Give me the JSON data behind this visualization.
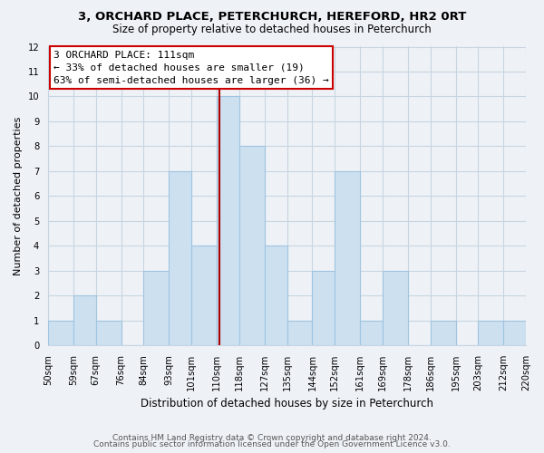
{
  "title_line1": "3, ORCHARD PLACE, PETERCHURCH, HEREFORD, HR2 0RT",
  "title_line2": "Size of property relative to detached houses in Peterchurch",
  "xlabel": "Distribution of detached houses by size in Peterchurch",
  "ylabel": "Number of detached properties",
  "bin_labels": [
    "50sqm",
    "59sqm",
    "67sqm",
    "76sqm",
    "84sqm",
    "93sqm",
    "101sqm",
    "110sqm",
    "118sqm",
    "127sqm",
    "135sqm",
    "144sqm",
    "152sqm",
    "161sqm",
    "169sqm",
    "178sqm",
    "186sqm",
    "195sqm",
    "203sqm",
    "212sqm",
    "220sqm"
  ],
  "bin_edges": [
    50,
    59,
    67,
    76,
    84,
    93,
    101,
    110,
    118,
    127,
    135,
    144,
    152,
    161,
    169,
    178,
    186,
    195,
    203,
    212,
    220
  ],
  "counts": [
    1,
    2,
    1,
    0,
    3,
    7,
    4,
    10,
    8,
    4,
    1,
    3,
    7,
    1,
    3,
    0,
    1,
    0,
    1,
    1
  ],
  "bar_color": "#cce0f0",
  "bar_edgecolor": "#a0c4e0",
  "property_value": 111,
  "vline_color": "#aa0000",
  "annotation_title": "3 ORCHARD PLACE: 111sqm",
  "annotation_line1": "← 33% of detached houses are smaller (19)",
  "annotation_line2": "63% of semi-detached houses are larger (36) →",
  "annotation_box_edgecolor": "#cc0000",
  "annotation_box_facecolor": "#ffffff",
  "ylim": [
    0,
    12
  ],
  "yticks": [
    0,
    1,
    2,
    3,
    4,
    5,
    6,
    7,
    8,
    9,
    10,
    11,
    12
  ],
  "footer_line1": "Contains HM Land Registry data © Crown copyright and database right 2024.",
  "footer_line2": "Contains public sector information licensed under the Open Government Licence v3.0.",
  "background_color": "#eef2f7",
  "grid_color": "#c8d4e0",
  "title_fontsize": 9.5,
  "subtitle_fontsize": 8.5,
  "ylabel_fontsize": 8,
  "xlabel_fontsize": 8.5,
  "tick_fontsize": 7.2,
  "ann_fontsize": 8,
  "footer_fontsize": 6.5
}
